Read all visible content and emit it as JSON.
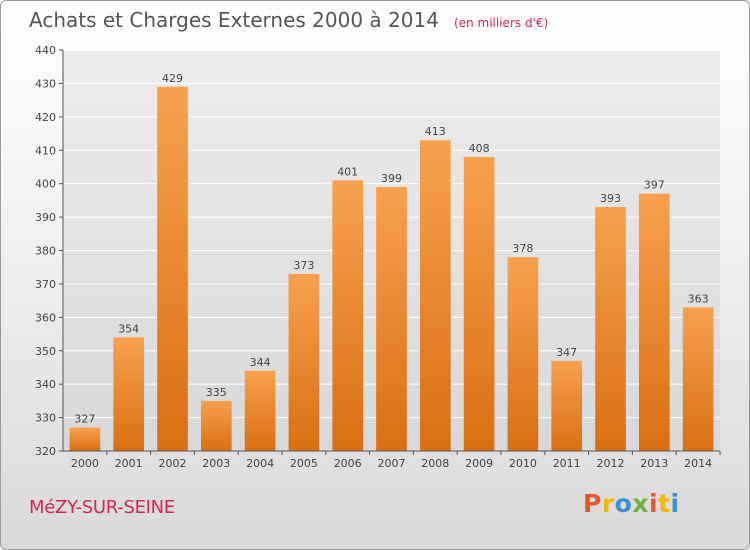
{
  "chart_data": {
    "type": "bar",
    "title": "Achats et Charges Externes 2000 à 2014",
    "subtitle": "(en milliers d'€)",
    "categories": [
      "2000",
      "2001",
      "2002",
      "2003",
      "2004",
      "2005",
      "2006",
      "2007",
      "2008",
      "2009",
      "2010",
      "2011",
      "2012",
      "2013",
      "2014"
    ],
    "values": [
      327,
      354,
      429,
      335,
      344,
      373,
      401,
      399,
      413,
      408,
      378,
      347,
      393,
      397,
      363
    ],
    "ylim": [
      320,
      440
    ],
    "yticks": [
      320,
      330,
      340,
      350,
      360,
      370,
      380,
      390,
      400,
      410,
      420,
      430,
      440
    ],
    "grid": true,
    "bar_color": "#f0913a"
  },
  "footer": {
    "commune": "MéZY-SUR-SEINE",
    "logo_letters": [
      "P",
      "r",
      "o",
      "x",
      "i",
      "t",
      "i"
    ],
    "logo_colors": [
      "#e8562a",
      "#f2b705",
      "#3a8fd8",
      "#6cb33f",
      "#e8562a",
      "#f2b705",
      "#3a8fd8"
    ]
  }
}
